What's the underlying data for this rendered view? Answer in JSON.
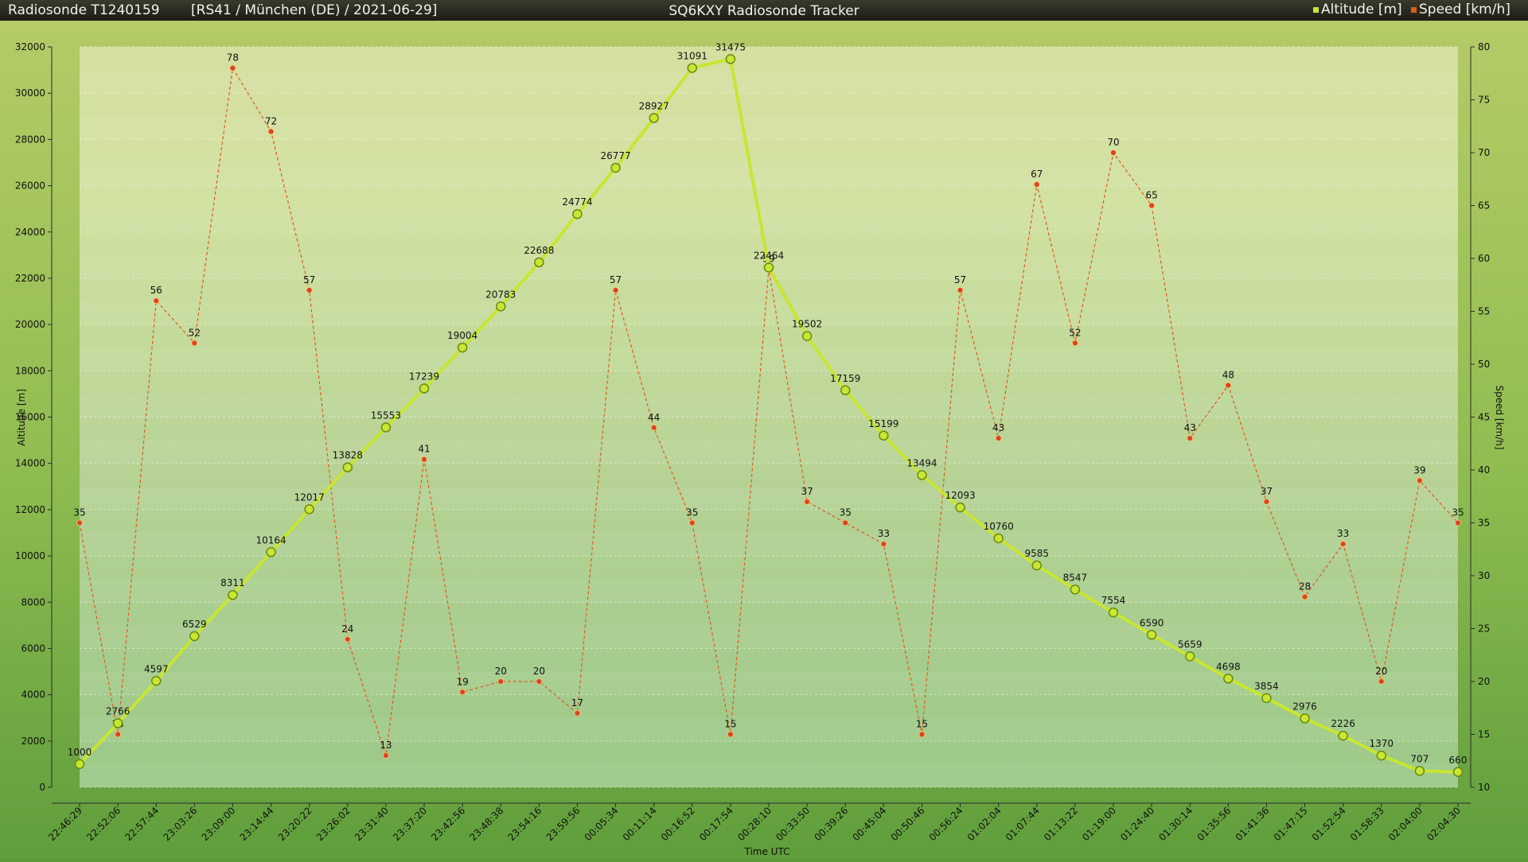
{
  "header": {
    "left_title": "Radiosonde T1240159",
    "flight_info": "[RS41 / München (DE) / 2021-06-29]",
    "center_title": "SQ6KXY Radiosonde Tracker",
    "legend_altitude": "Altitude [m]",
    "legend_speed": "Speed [km/h]"
  },
  "colors": {
    "altitude": "#c8e632",
    "altitude_marker_stroke": "#6a8a10",
    "speed": "#e05a20",
    "speed_marker_fill": "#d8442a",
    "header_bg": "#2b2b22",
    "header_text": "#f2f2e8"
  },
  "chart_data": {
    "type": "line",
    "title": "SQ6KXY Radiosonde Tracker",
    "xlabel": "Time UTC",
    "ylabel_left": "Altitude [m]",
    "ylabel_right": "Speed [km/h]",
    "y_left_lim": [
      0,
      32000
    ],
    "y_left_ticks": [
      0,
      2000,
      4000,
      6000,
      8000,
      10000,
      12000,
      14000,
      16000,
      18000,
      20000,
      22000,
      24000,
      26000,
      28000,
      30000,
      32000
    ],
    "y_right_lim": [
      10,
      80
    ],
    "y_right_ticks": [
      10,
      15,
      20,
      25,
      30,
      35,
      40,
      45,
      50,
      55,
      60,
      65,
      70,
      75,
      80
    ],
    "legend_position": "top-right",
    "grid": true,
    "categories": [
      "22:46:29",
      "22:52:06",
      "22:57:44",
      "23:03:26",
      "23:09:00",
      "23:14:44",
      "23:20:22",
      "23:26:02",
      "23:31:40",
      "23:37:20",
      "23:42:56",
      "23:48:38",
      "23:54:16",
      "23:59:56",
      "00:05:34",
      "00:11:14",
      "00:16:52",
      "00:17:54",
      "00:28:10",
      "00:33:50",
      "00:39:26",
      "00:45:04",
      "00:50:46",
      "00:56:24",
      "01:02:04",
      "01:07:44",
      "01:13:22",
      "01:19:00",
      "01:24:40",
      "01:30:14",
      "01:35:56",
      "01:41:36",
      "01:47:15",
      "01:52:54",
      "01:58:33",
      "02:04:00",
      "02:04:30"
    ],
    "series": [
      {
        "name": "Altitude [m]",
        "axis": "left",
        "values": [
          1000,
          2766,
          4597,
          6529,
          8311,
          10164,
          12017,
          13828,
          15553,
          17239,
          19004,
          20783,
          22688,
          24774,
          26777,
          28927,
          31091,
          31475,
          22464,
          19502,
          17159,
          15199,
          13494,
          12093,
          10760,
          9585,
          8547,
          7554,
          6590,
          5659,
          4698,
          3854,
          2976,
          2226,
          1370,
          707,
          660
        ]
      },
      {
        "name": "Speed [km/h]",
        "axis": "right",
        "values": [
          35,
          15,
          56,
          52,
          78,
          72,
          57,
          24,
          13,
          41,
          19,
          20,
          20,
          17,
          57,
          44,
          35,
          15,
          59,
          37,
          35,
          33,
          15,
          57,
          43,
          67,
          52,
          70,
          65,
          43,
          48,
          37,
          28,
          33,
          20,
          39,
          35
        ]
      }
    ]
  }
}
